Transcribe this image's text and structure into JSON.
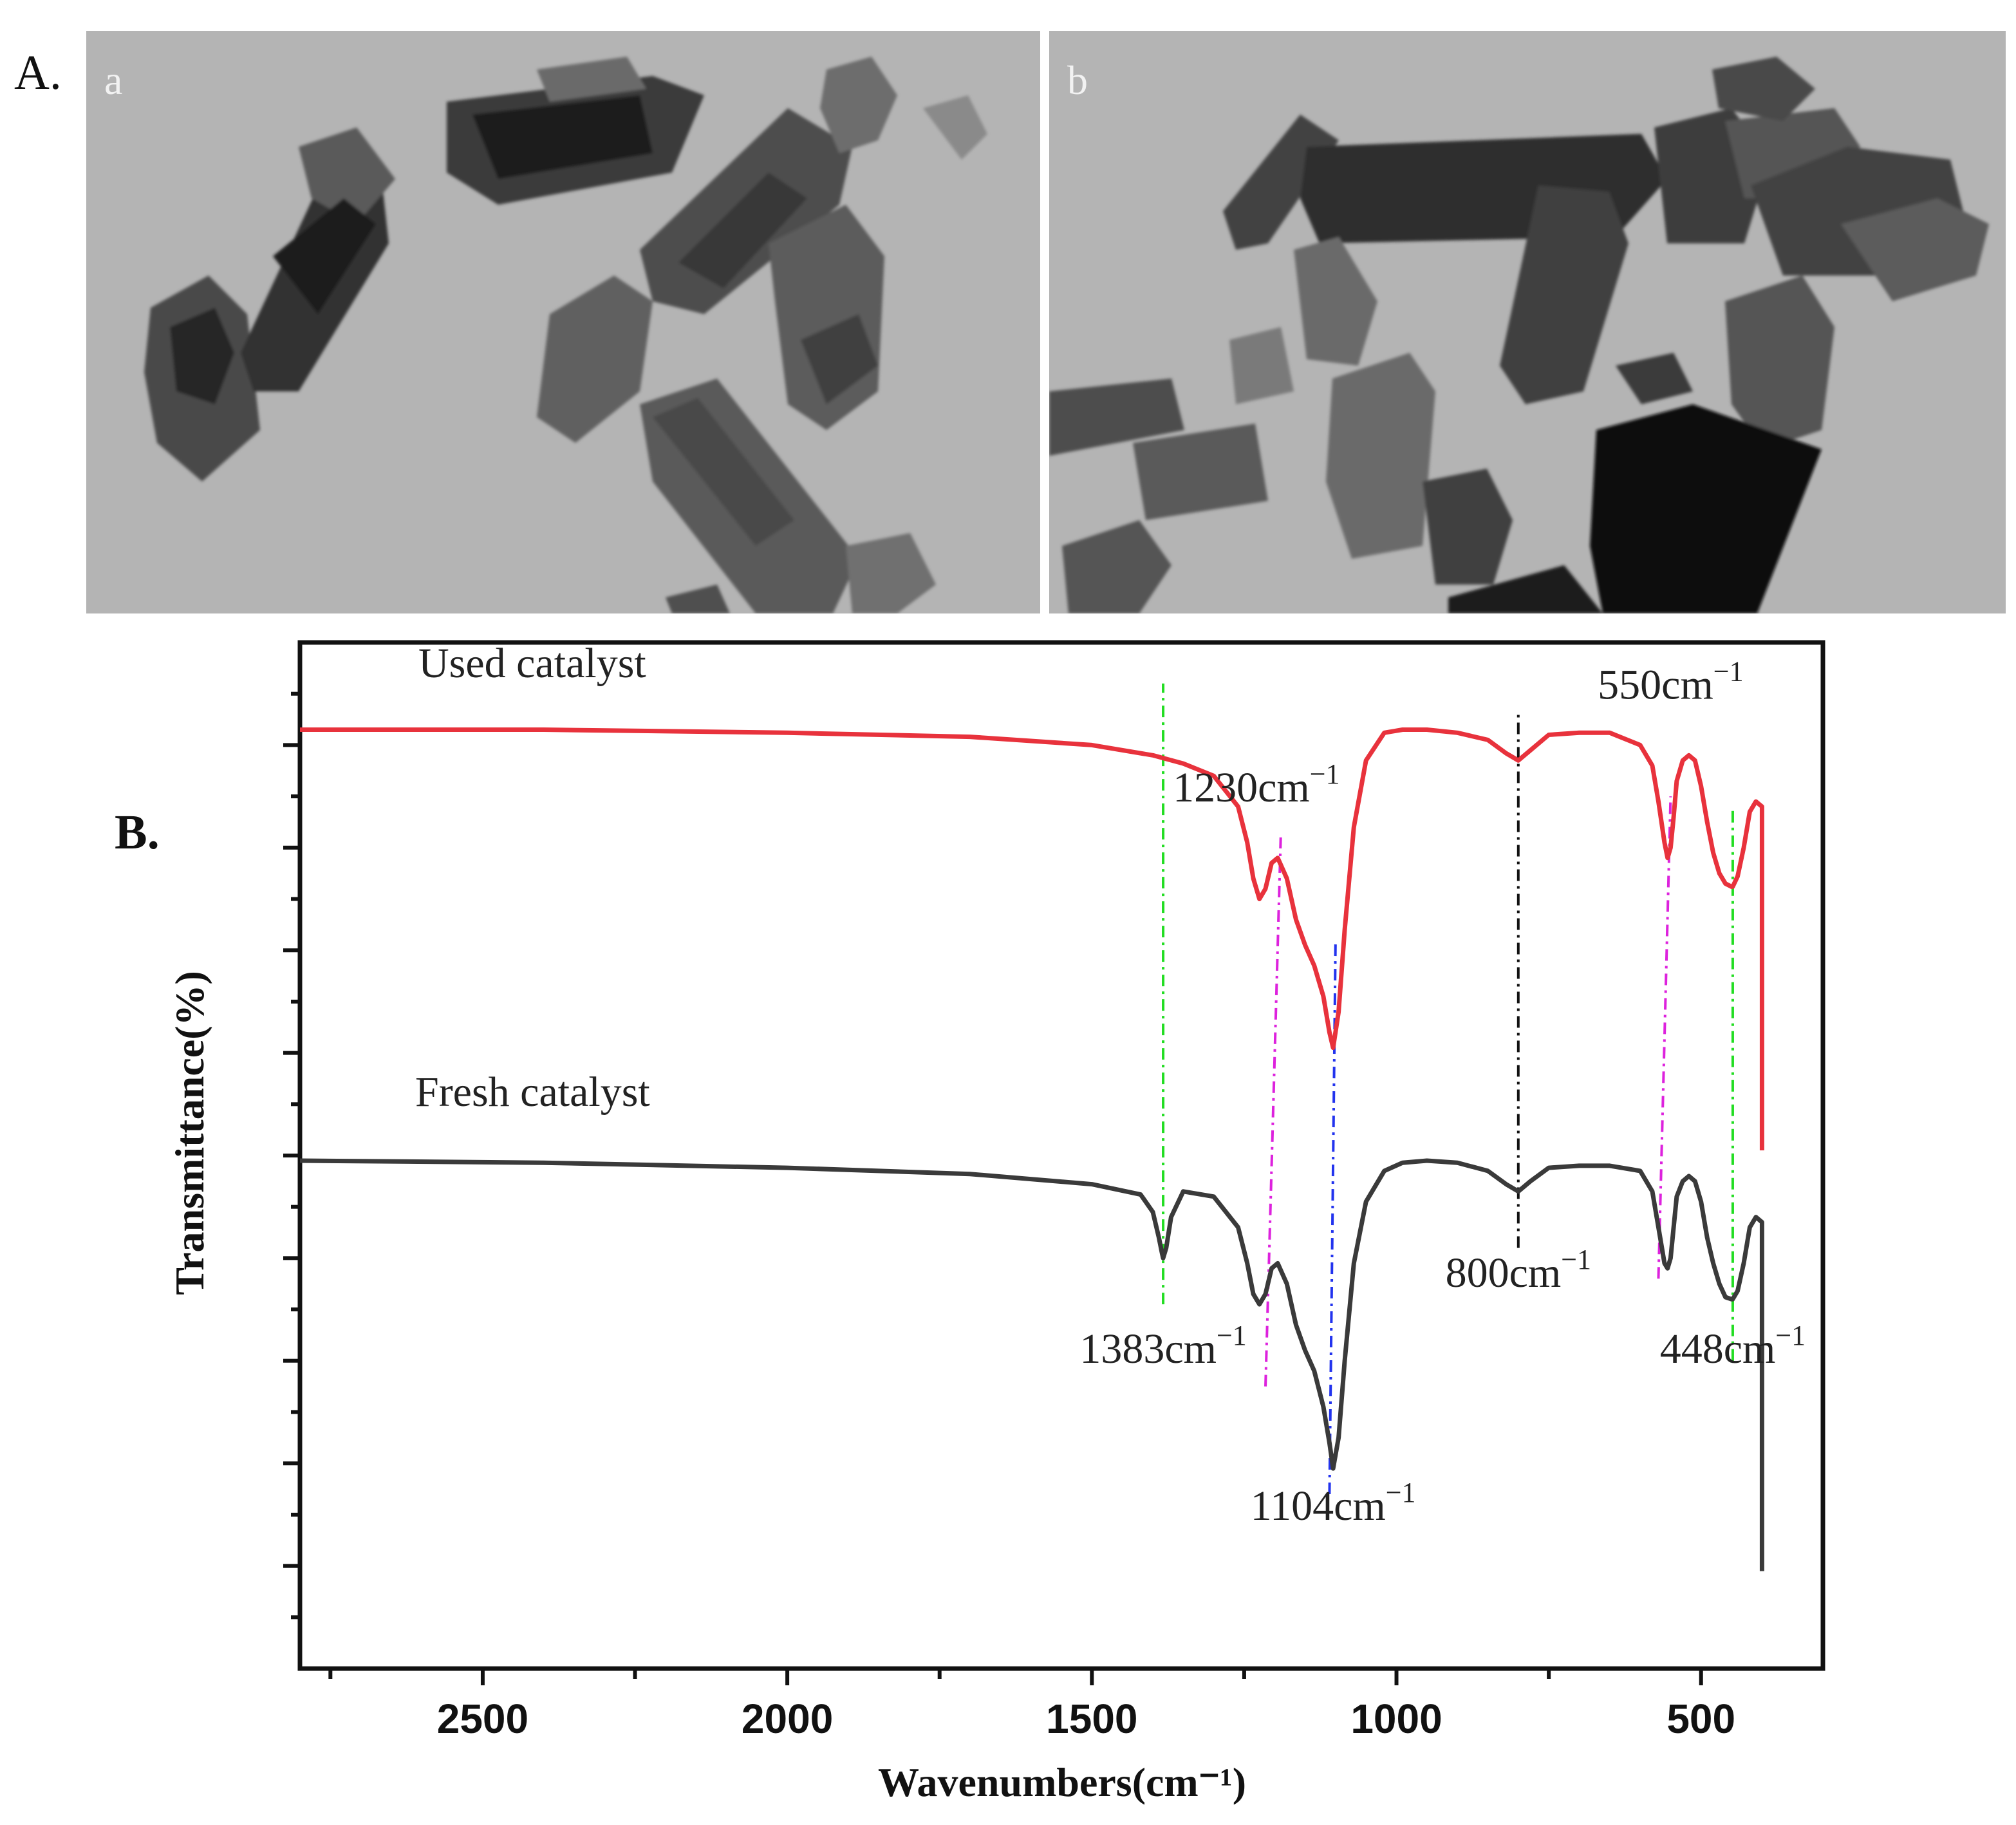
{
  "panels": {
    "a_label": "A.",
    "b_label": "B.",
    "tem_a_sublabel": "a",
    "tem_b_sublabel": "b"
  },
  "chart_data": {
    "type": "line",
    "title": "",
    "xlabel": "Wavenumbers(cm⁻¹)",
    "ylabel": "Transmittance(%)",
    "xlim": [
      2800,
      300
    ],
    "x_reversed": true,
    "ylim": [
      0,
      10
    ],
    "y_tick_labels_shown": false,
    "x_ticks": [
      2500,
      2000,
      1500,
      1000,
      500
    ],
    "x_tick_labels": [
      "2500",
      "2000",
      "1500",
      "1000",
      "500"
    ],
    "grid": false,
    "series": [
      {
        "name": "Used catalyst",
        "color": "#e8323c",
        "x": [
          2800,
          2400,
          2000,
          1700,
          1500,
          1400,
          1350,
          1300,
          1260,
          1245,
          1235,
          1225,
          1215,
          1205,
          1195,
          1180,
          1165,
          1150,
          1135,
          1120,
          1110,
          1104,
          1095,
          1085,
          1070,
          1050,
          1020,
          990,
          950,
          900,
          850,
          820,
          800,
          780,
          750,
          700,
          650,
          600,
          580,
          570,
          560,
          555,
          550,
          545,
          540,
          530,
          520,
          510,
          500,
          490,
          480,
          470,
          460,
          450,
          448,
          440,
          430,
          420,
          410,
          400,
          400
        ],
        "y": [
          9.15,
          9.15,
          9.12,
          9.08,
          9.0,
          8.9,
          8.82,
          8.7,
          8.4,
          8.05,
          7.7,
          7.5,
          7.6,
          7.85,
          7.9,
          7.7,
          7.3,
          7.05,
          6.85,
          6.55,
          6.2,
          6.05,
          6.4,
          7.2,
          8.2,
          8.85,
          9.12,
          9.15,
          9.15,
          9.12,
          9.05,
          8.92,
          8.85,
          8.95,
          9.1,
          9.12,
          9.12,
          9.0,
          8.8,
          8.45,
          8.05,
          7.9,
          8.0,
          8.3,
          8.65,
          8.85,
          8.9,
          8.85,
          8.6,
          8.25,
          7.95,
          7.75,
          7.65,
          7.62,
          7.62,
          7.72,
          8.0,
          8.35,
          8.45,
          8.4,
          5.05
        ]
      },
      {
        "name": "Fresh catalyst",
        "color": "#3a3a3a",
        "x": [
          2800,
          2400,
          2000,
          1700,
          1500,
          1420,
          1400,
          1390,
          1385,
          1383,
          1378,
          1370,
          1350,
          1300,
          1260,
          1245,
          1235,
          1225,
          1215,
          1205,
          1195,
          1180,
          1165,
          1150,
          1135,
          1120,
          1110,
          1104,
          1095,
          1085,
          1070,
          1050,
          1020,
          990,
          950,
          900,
          850,
          820,
          800,
          780,
          750,
          700,
          650,
          600,
          580,
          570,
          560,
          555,
          550,
          545,
          540,
          530,
          520,
          510,
          500,
          490,
          480,
          470,
          460,
          450,
          448,
          440,
          430,
          420,
          410,
          400,
          400
        ],
        "y": [
          4.95,
          4.93,
          4.88,
          4.82,
          4.72,
          4.62,
          4.45,
          4.2,
          4.05,
          4.0,
          4.1,
          4.4,
          4.65,
          4.6,
          4.3,
          3.95,
          3.65,
          3.55,
          3.65,
          3.9,
          3.95,
          3.75,
          3.35,
          3.1,
          2.9,
          2.55,
          2.2,
          1.95,
          2.25,
          3.0,
          3.95,
          4.55,
          4.85,
          4.93,
          4.95,
          4.93,
          4.85,
          4.72,
          4.65,
          4.75,
          4.88,
          4.9,
          4.9,
          4.85,
          4.65,
          4.3,
          3.95,
          3.9,
          4.0,
          4.3,
          4.6,
          4.75,
          4.8,
          4.75,
          4.55,
          4.2,
          3.95,
          3.75,
          3.62,
          3.6,
          3.6,
          3.68,
          3.95,
          4.3,
          4.4,
          4.35,
          0.95
        ]
      }
    ],
    "reference_lines": [
      {
        "x": 1383,
        "color": "#22dd22",
        "ymin": 3.55,
        "ymax": 9.6
      },
      {
        "x": 1230,
        "color": "#dd22dd",
        "ymin": 2.75,
        "ymax": 8.1,
        "x_bottom": 1215,
        "x_top": 1190
      },
      {
        "x": 1104,
        "color": "#2233ee",
        "ymin": 1.7,
        "ymax": 7.1,
        "x_bottom": 1110,
        "x_top": 1100
      },
      {
        "x": 800,
        "color": "#111111",
        "ymin": 4.1,
        "ymax": 9.3
      },
      {
        "x": 550,
        "color": "#dd22dd",
        "ymin": 3.8,
        "ymax": 8.5,
        "x_bottom": 570,
        "x_top": 550
      },
      {
        "x": 448,
        "color": "#22dd22",
        "ymin": 3.0,
        "ymax": 8.4
      }
    ],
    "annotations": [
      {
        "text": "1230cm⁻¹",
        "x": 1230,
        "y": 8.45
      },
      {
        "text": "550cm⁻¹",
        "x": 550,
        "y": 9.45
      },
      {
        "text": "800cm⁻¹",
        "x": 800,
        "y": 3.72
      },
      {
        "text": "1383cm⁻¹",
        "x": 1383,
        "y": 2.98
      },
      {
        "text": "448cm⁻¹",
        "x": 448,
        "y": 2.98
      },
      {
        "text": "1104cm⁻¹",
        "x": 1104,
        "y": 1.45
      }
    ],
    "series_labels_position": "above each curve, upper left"
  }
}
